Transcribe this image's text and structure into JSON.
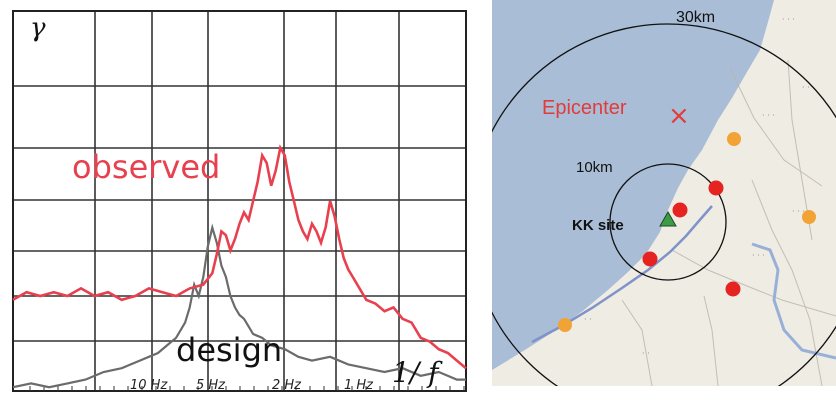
{
  "chart_data": {
    "type": "line",
    "ylabel": "γ",
    "xlabel": "1/ f",
    "x_ticks": [
      "10 Hz",
      "5 Hz",
      "2 Hz",
      "1 Hz"
    ],
    "grid": true,
    "series": [
      {
        "name": "observed",
        "color": "#e8404e",
        "x": [
          0.0,
          0.03,
          0.06,
          0.09,
          0.12,
          0.15,
          0.18,
          0.21,
          0.24,
          0.27,
          0.3,
          0.33,
          0.36,
          0.39,
          0.42,
          0.44,
          0.45,
          0.46,
          0.47,
          0.48,
          0.49,
          0.5,
          0.51,
          0.52,
          0.53,
          0.54,
          0.55,
          0.56,
          0.57,
          0.58,
          0.59,
          0.6,
          0.61,
          0.62,
          0.63,
          0.64,
          0.65,
          0.66,
          0.67,
          0.68,
          0.69,
          0.7,
          0.71,
          0.72,
          0.73,
          0.74,
          0.75,
          0.76,
          0.78,
          0.8,
          0.82,
          0.84,
          0.86,
          0.88,
          0.9,
          0.92,
          0.94,
          0.96,
          0.98,
          1.0
        ],
        "y": [
          0.24,
          0.26,
          0.25,
          0.26,
          0.25,
          0.27,
          0.25,
          0.26,
          0.24,
          0.25,
          0.27,
          0.26,
          0.25,
          0.27,
          0.28,
          0.31,
          0.36,
          0.42,
          0.41,
          0.37,
          0.4,
          0.44,
          0.47,
          0.45,
          0.5,
          0.55,
          0.62,
          0.6,
          0.54,
          0.58,
          0.64,
          0.62,
          0.55,
          0.5,
          0.45,
          0.42,
          0.4,
          0.44,
          0.42,
          0.39,
          0.43,
          0.5,
          0.46,
          0.4,
          0.35,
          0.32,
          0.3,
          0.28,
          0.24,
          0.23,
          0.21,
          0.22,
          0.19,
          0.18,
          0.14,
          0.13,
          0.11,
          0.1,
          0.08,
          0.06
        ]
      },
      {
        "name": "design",
        "color": "#6b6b6b",
        "x": [
          0.0,
          0.04,
          0.08,
          0.12,
          0.16,
          0.2,
          0.24,
          0.28,
          0.3,
          0.32,
          0.34,
          0.36,
          0.38,
          0.39,
          0.4,
          0.41,
          0.42,
          0.43,
          0.44,
          0.45,
          0.46,
          0.47,
          0.48,
          0.49,
          0.5,
          0.51,
          0.52,
          0.53,
          0.55,
          0.57,
          0.6,
          0.63,
          0.66,
          0.7,
          0.74,
          0.78,
          0.82,
          0.86,
          0.9,
          0.94,
          0.98,
          1.0
        ],
        "y": [
          0.01,
          0.02,
          0.01,
          0.02,
          0.03,
          0.05,
          0.06,
          0.08,
          0.09,
          0.1,
          0.12,
          0.14,
          0.18,
          0.22,
          0.28,
          0.25,
          0.3,
          0.38,
          0.43,
          0.39,
          0.33,
          0.3,
          0.25,
          0.22,
          0.2,
          0.19,
          0.17,
          0.15,
          0.14,
          0.12,
          0.11,
          0.09,
          0.08,
          0.09,
          0.07,
          0.06,
          0.05,
          0.06,
          0.04,
          0.05,
          0.03,
          0.03
        ]
      }
    ]
  },
  "map": {
    "title_outer": "30km",
    "title_inner": "10km",
    "epicenter_label": "Epicenter",
    "epicenter_marker": "×",
    "site_label": "KK site",
    "colors": {
      "sea": "#a9bed6",
      "land": "#efece4",
      "circle": "#111111",
      "epicenter": "#e23b3b",
      "red_marker": "#e52421",
      "orange_marker": "#f2a336",
      "site_marker": "#3e9b45"
    }
  }
}
